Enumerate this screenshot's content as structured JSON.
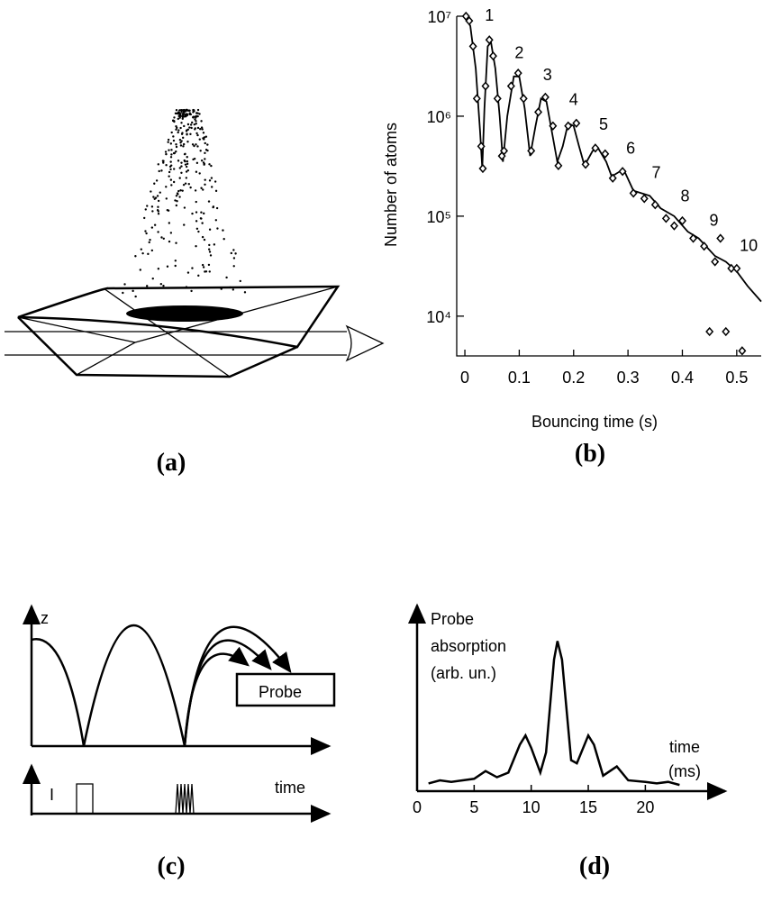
{
  "panel_a": {
    "label": "(a)"
  },
  "panel_c": {
    "label": "(c)",
    "z_label": "z",
    "box_label": "Probe",
    "i_label": "I",
    "time_label": "time"
  },
  "chart_data": [
    {
      "type": "line",
      "panel_label": "(b)",
      "x_label": "Bouncing time (s)",
      "y_label": "Number of atoms",
      "log_y": true,
      "xlim": [
        -0.015,
        0.545
      ],
      "ylim": [
        4000,
        10000000
      ],
      "xticks": [
        0,
        0.1,
        0.2,
        0.3,
        0.4,
        0.5
      ],
      "yticks": [
        {
          "value": 10000,
          "label": "10⁴"
        },
        {
          "value": 100000,
          "label": "10⁵"
        },
        {
          "value": 1000000,
          "label": "10⁶"
        },
        {
          "value": 10000000,
          "label": "10⁷"
        }
      ],
      "series": [
        {
          "style": "line",
          "color": "#000000",
          "x": [
            0,
            0.01,
            0.02,
            0.028,
            0.032,
            0.036,
            0.042,
            0.048,
            0.056,
            0.064,
            0.07,
            0.078,
            0.09,
            0.1,
            0.11,
            0.12,
            0.13,
            0.14,
            0.15,
            0.16,
            0.17,
            0.18,
            0.19,
            0.2,
            0.21,
            0.22,
            0.235,
            0.245,
            0.26,
            0.27,
            0.285,
            0.295,
            0.31,
            0.34,
            0.36,
            0.385,
            0.41,
            0.43,
            0.46,
            0.48,
            0.5,
            0.52,
            0.545
          ],
          "values": [
            10000000,
            8000000,
            3000000,
            700000,
            300000,
            1200000,
            5000000,
            5500000,
            3000000,
            1000000,
            350000,
            1000000,
            2500000,
            2500000,
            1200000,
            400000,
            800000,
            1500000,
            1400000,
            700000,
            350000,
            500000,
            850000,
            800000,
            500000,
            320000,
            450000,
            480000,
            350000,
            250000,
            280000,
            270000,
            180000,
            160000,
            120000,
            100000,
            70000,
            60000,
            40000,
            35000,
            28000,
            20000,
            14000
          ]
        },
        {
          "style": "markers",
          "color": "#000000",
          "x": [
            0.002,
            0.008,
            0.015,
            0.022,
            0.03,
            0.033,
            0.038,
            0.045,
            0.052,
            0.06,
            0.068,
            0.072,
            0.085,
            0.098,
            0.108,
            0.122,
            0.135,
            0.148,
            0.162,
            0.172,
            0.19,
            0.205,
            0.222,
            0.24,
            0.258,
            0.272,
            0.29,
            0.31,
            0.33,
            0.35,
            0.37,
            0.385,
            0.4,
            0.42,
            0.44,
            0.45,
            0.46,
            0.47,
            0.48,
            0.49,
            0.5,
            0.51
          ],
          "values": [
            10000000,
            9000000,
            5000000,
            1500000,
            500000,
            300000,
            2000000,
            5800000,
            4000000,
            1500000,
            400000,
            450000,
            2000000,
            2700000,
            1500000,
            450000,
            1100000,
            1550000,
            800000,
            320000,
            800000,
            850000,
            330000,
            480000,
            420000,
            240000,
            280000,
            170000,
            150000,
            130000,
            95000,
            80000,
            90000,
            60000,
            50000,
            7000,
            35000,
            60000,
            7000,
            30000,
            30000,
            4500
          ]
        }
      ],
      "annotations": [
        {
          "text": "1",
          "x": 0.045,
          "y": 9000000
        },
        {
          "text": "2",
          "x": 0.1,
          "y": 3800000
        },
        {
          "text": "3",
          "x": 0.152,
          "y": 2300000
        },
        {
          "text": "4",
          "x": 0.2,
          "y": 1300000
        },
        {
          "text": "5",
          "x": 0.255,
          "y": 730000
        },
        {
          "text": "6",
          "x": 0.305,
          "y": 420000
        },
        {
          "text": "7",
          "x": 0.352,
          "y": 240000
        },
        {
          "text": "8",
          "x": 0.405,
          "y": 140000
        },
        {
          "text": "9",
          "x": 0.458,
          "y": 80000
        },
        {
          "text": "10",
          "x": 0.522,
          "y": 45000
        }
      ]
    },
    {
      "type": "line",
      "panel_label": "(d)",
      "y_label_lines": [
        "Probe",
        "absorption",
        "(arb. un.)"
      ],
      "x_label_lines": [
        "time",
        "(ms)"
      ],
      "xlim": [
        0,
        26.6
      ],
      "ylim": [
        0,
        1.2
      ],
      "xticks": [
        0,
        5,
        10,
        15,
        20
      ],
      "x": [
        1,
        2,
        3,
        4,
        5,
        6,
        7,
        8,
        9,
        9.5,
        10,
        10.8,
        11.3,
        12,
        12.3,
        12.7,
        13.5,
        14,
        15,
        15.5,
        16.3,
        17.5,
        18.5,
        20,
        21,
        22,
        23
      ],
      "values": [
        0.05,
        0.07,
        0.06,
        0.07,
        0.08,
        0.13,
        0.09,
        0.12,
        0.3,
        0.36,
        0.28,
        0.12,
        0.25,
        0.85,
        0.97,
        0.85,
        0.2,
        0.18,
        0.36,
        0.3,
        0.1,
        0.16,
        0.07,
        0.06,
        0.05,
        0.06,
        0.04
      ]
    }
  ]
}
